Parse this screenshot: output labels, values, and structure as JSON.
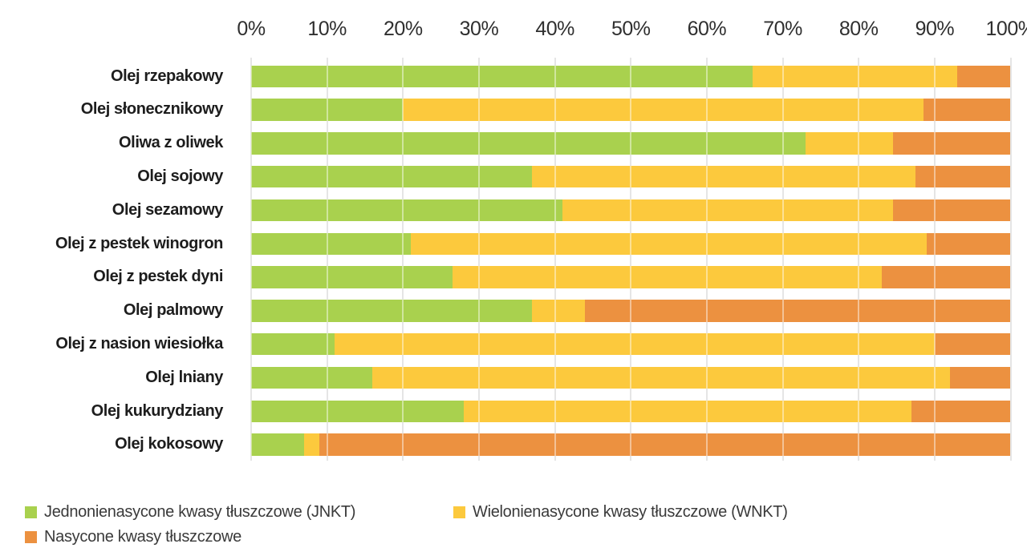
{
  "chart_data": {
    "type": "bar",
    "orientation": "horizontal",
    "stacked": true,
    "stack_total": 100,
    "unit": "%",
    "title": "",
    "xlabel": "",
    "ylabel": "",
    "grid": true,
    "legend_position": "bottom",
    "x_axis": {
      "min": 0,
      "max": 100,
      "tick_step": 10,
      "ticks": [
        "0%",
        "10%",
        "20%",
        "30%",
        "40%",
        "50%",
        "60%",
        "70%",
        "80%",
        "90%",
        "100%"
      ]
    },
    "categories": [
      "Olej rzepakowy",
      "Olej słonecznikowy",
      "Oliwa z oliwek",
      "Olej sojowy",
      "Olej sezamowy",
      "Olej z pestek winogron",
      "Olej z pestek dyni",
      "Olej palmowy",
      "Olej z nasion wiesiołka",
      "Olej lniany",
      "Olej kukurydziany",
      "Olej kokosowy"
    ],
    "series": [
      {
        "name": "Jednonienasycone kwasy tłuszczowe (JNKT)",
        "color": "#a9d14e",
        "values": [
          66,
          20,
          73,
          37,
          41,
          21,
          26.5,
          37,
          11,
          16,
          28,
          7
        ]
      },
      {
        "name": "Wielonienasycone kwasy tłuszczowe (WNKT)",
        "color": "#fcc93d",
        "values": [
          27,
          68.5,
          11.5,
          50.5,
          43.5,
          68,
          56.5,
          7,
          79,
          76,
          59,
          2
        ]
      },
      {
        "name": "Nasycone kwasy tłuszczowe",
        "color": "#ec9140",
        "values": [
          7,
          11.5,
          15.5,
          12.5,
          15.5,
          11,
          17,
          56,
          10,
          8,
          13,
          91
        ]
      }
    ]
  },
  "colors": {
    "gridline": "#cfcfcf",
    "axis_text": "#2f2f2f",
    "category_text": "#1d1d1d",
    "legend_text": "#3a3a3a",
    "background": "#ffffff"
  }
}
